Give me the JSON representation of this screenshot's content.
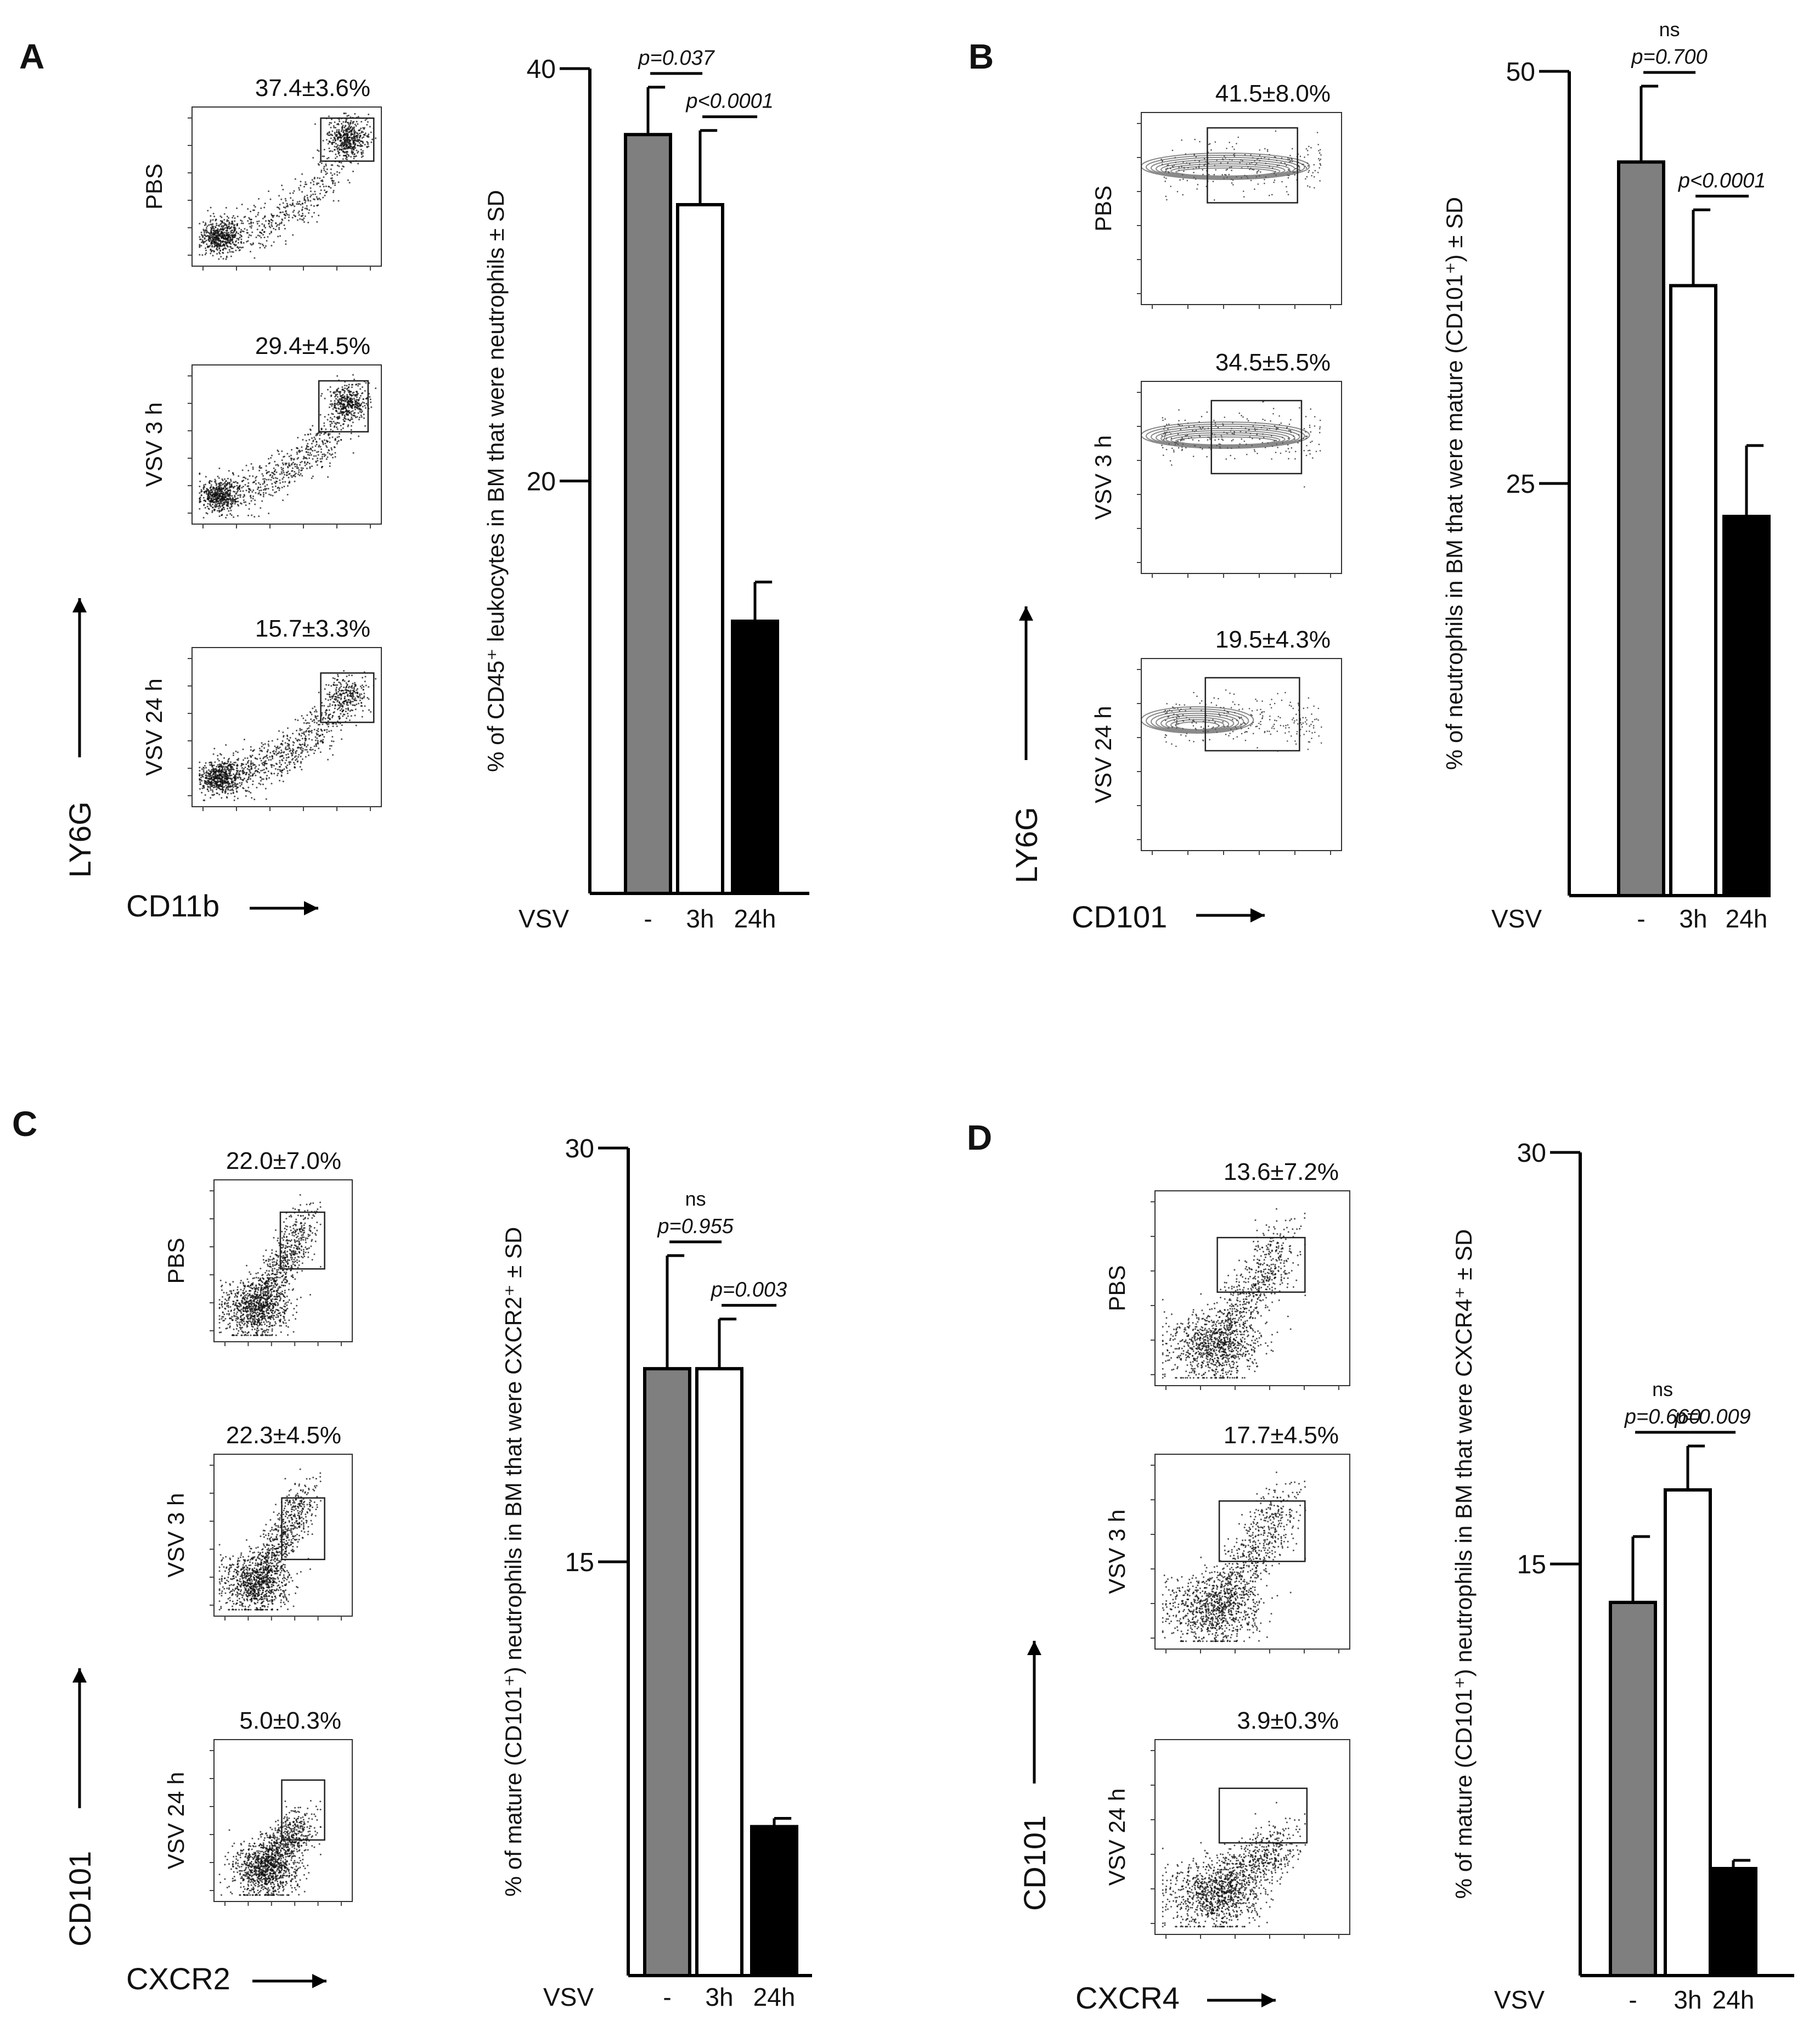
{
  "figure": {
    "colors": {
      "control": "#7f7f7f",
      "vsv3h": "#ffffff",
      "vsv24h": "#000000",
      "axis": "#000000",
      "dots": "#111111",
      "contour": "#8a8a8a"
    },
    "vsv_label": "VSV",
    "category_labels": [
      "-",
      "3h",
      "24h"
    ]
  },
  "chart_data": [
    {
      "panel": "A",
      "type": "bar",
      "ylabel": "% of CD45⁺ leukocytes in BM that were neutrophils ± SD",
      "xlabel": "VSV",
      "categories": [
        "-",
        "3h",
        "24h"
      ],
      "values": [
        36.8,
        33.4,
        13.2
      ],
      "errors": [
        2.3,
        3.6,
        1.9
      ],
      "ylim": [
        0,
        40
      ],
      "yticks": [
        20,
        40
      ],
      "tick_labels": [
        "20",
        "40"
      ],
      "comparisons": [
        {
          "from": 0,
          "to": 1,
          "p": "p=0.037",
          "ns": ""
        },
        {
          "from": 1,
          "to": 2,
          "p": "p<0.0001",
          "ns": ""
        }
      ],
      "flow": {
        "y_marker": "LY6G",
        "x_marker": "CD11b",
        "style": "dot",
        "plots": [
          {
            "label": "PBS",
            "percent": "37.4±3.6%"
          },
          {
            "label": "VSV 3 h",
            "percent": "29.4±4.5%"
          },
          {
            "label": "VSV 24 h",
            "percent": "15.7±3.3%"
          }
        ]
      }
    },
    {
      "panel": "B",
      "type": "bar",
      "ylabel": "% of neutrophils in BM that were mature (CD101⁺) ± SD",
      "xlabel": "VSV",
      "categories": [
        "-",
        "3h",
        "24h"
      ],
      "values": [
        44.5,
        37.0,
        23.0
      ],
      "errors": [
        4.6,
        4.6,
        4.3
      ],
      "ylim": [
        0,
        50
      ],
      "yticks": [
        25,
        50
      ],
      "tick_labels": [
        "25",
        "50"
      ],
      "comparisons": [
        {
          "from": 0,
          "to": 1,
          "p": "p=0.700",
          "ns": "ns"
        },
        {
          "from": 1,
          "to": 2,
          "p": "p<0.0001",
          "ns": ""
        }
      ],
      "flow": {
        "y_marker": "LY6G",
        "x_marker": "CD101",
        "style": "contour",
        "plots": [
          {
            "label": "PBS",
            "percent": "41.5±8.0%"
          },
          {
            "label": "VSV 3 h",
            "percent": "34.5±5.5%"
          },
          {
            "label": "VSV 24 h",
            "percent": "19.5±4.3%"
          }
        ]
      }
    },
    {
      "panel": "C",
      "type": "bar",
      "ylabel": "% of mature (CD101⁺) neutrophils in BM that were CXCR2⁺ ± SD",
      "xlabel": "VSV",
      "categories": [
        "-",
        "3h",
        "24h"
      ],
      "values": [
        22.0,
        22.0,
        5.4
      ],
      "errors": [
        4.1,
        1.8,
        0.3
      ],
      "ylim": [
        0,
        30
      ],
      "yticks": [
        15,
        30
      ],
      "tick_labels": [
        "15",
        "30"
      ],
      "comparisons": [
        {
          "from": 0,
          "to": 1,
          "p": "p=0.955",
          "ns": "ns"
        },
        {
          "from": 1,
          "to": 2,
          "p": "p=0.003",
          "ns": ""
        }
      ],
      "flow": {
        "y_marker": "CD101",
        "x_marker": "CXCR2",
        "style": "dot",
        "plots": [
          {
            "label": "PBS",
            "percent": "22.0±7.0%"
          },
          {
            "label": "VSV 3 h",
            "percent": "22.3±4.5%"
          },
          {
            "label": "VSV 24 h",
            "percent": "5.0±0.3%"
          }
        ]
      }
    },
    {
      "panel": "D",
      "type": "bar",
      "ylabel": "% of mature (CD101⁺) neutrophils in BM that were CXCR4⁺ ± SD",
      "xlabel": "VSV",
      "categories": [
        "-",
        "3h",
        "24h"
      ],
      "values": [
        13.6,
        17.7,
        3.9
      ],
      "errors": [
        2.4,
        1.6,
        0.3
      ],
      "ylim": [
        0,
        30
      ],
      "yticks": [
        15,
        30
      ],
      "tick_labels": [
        "15",
        "30"
      ],
      "comparisons": [
        {
          "from": 0,
          "to": 1,
          "p": "p=0.660",
          "ns": "ns"
        },
        {
          "from": 1,
          "to": 2,
          "p": "p=0.009",
          "ns": ""
        }
      ],
      "flow": {
        "y_marker": "CD101",
        "x_marker": "CXCR4",
        "style": "dot",
        "plots": [
          {
            "label": "PBS",
            "percent": "13.6±7.2%"
          },
          {
            "label": "VSV 3 h",
            "percent": "17.7±4.5%"
          },
          {
            "label": "VSV 24 h",
            "percent": "3.9±0.3%"
          }
        ]
      }
    }
  ]
}
